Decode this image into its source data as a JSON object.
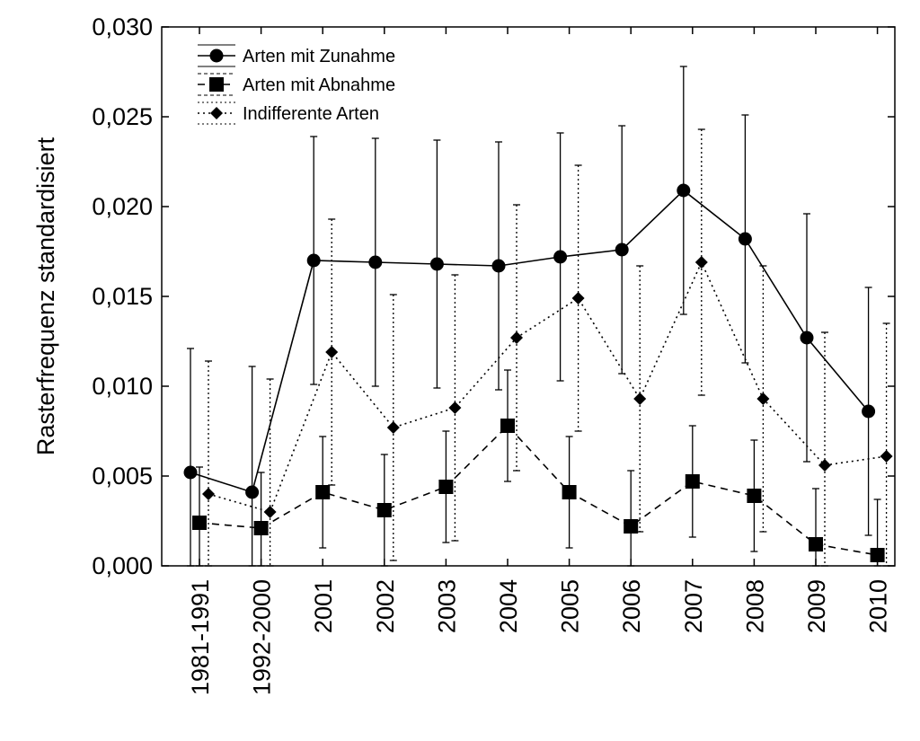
{
  "chart_data": {
    "type": "line",
    "title": "",
    "xlabel": "",
    "ylabel": "Rasterfrequenz standardisiert",
    "ylim": [
      0,
      0.03
    ],
    "yticks": [
      "0,000",
      "0,005",
      "0,010",
      "0,015",
      "0,020",
      "0,025",
      "0,030"
    ],
    "ytick_values": [
      0,
      0.005,
      0.01,
      0.015,
      0.02,
      0.025,
      0.03
    ],
    "categories": [
      "1981-1991",
      "1992-2000",
      "2001",
      "2002",
      "2003",
      "2004",
      "2005",
      "2006",
      "2007",
      "2008",
      "2009",
      "2010"
    ],
    "grid": false,
    "legend_position": "top-left",
    "error_bars": true,
    "series": [
      {
        "name": "Arten mit Zunahme",
        "marker": "circle",
        "line": "solid",
        "values": [
          0.0052,
          0.0041,
          0.017,
          0.0169,
          0.0168,
          0.0167,
          0.0172,
          0.0176,
          0.0209,
          0.0182,
          0.0127,
          0.0086
        ],
        "upper": [
          0.0121,
          0.0111,
          0.0239,
          0.0238,
          0.0237,
          0.0236,
          0.0241,
          0.0245,
          0.0278,
          0.0251,
          0.0196,
          0.0155
        ],
        "lower": [
          0.0,
          0.0,
          0.0101,
          0.01,
          0.0099,
          0.0098,
          0.0103,
          0.0107,
          0.014,
          0.0113,
          0.0058,
          0.0017
        ]
      },
      {
        "name": "Arten mit Abnahme",
        "marker": "square",
        "line": "dashed",
        "values": [
          0.0024,
          0.0021,
          0.0041,
          0.0031,
          0.0044,
          0.0078,
          0.0041,
          0.0022,
          0.0047,
          0.0039,
          0.0012,
          0.0006
        ],
        "upper": [
          0.0055,
          0.0052,
          0.0072,
          0.0062,
          0.0075,
          0.0109,
          0.0072,
          0.0053,
          0.0078,
          0.007,
          0.0043,
          0.0037
        ],
        "lower": [
          0.0,
          0.0,
          0.001,
          0.0,
          0.0013,
          0.0047,
          0.001,
          0.0,
          0.0016,
          0.0008,
          0.0,
          0.0
        ]
      },
      {
        "name": "Indifferente Arten",
        "marker": "diamond",
        "line": "dotted",
        "values": [
          0.004,
          0.003,
          0.0119,
          0.0077,
          0.0088,
          0.0127,
          0.0149,
          0.0093,
          0.0169,
          0.0093,
          0.0056,
          0.0061
        ],
        "upper": [
          0.0114,
          0.0104,
          0.0193,
          0.0151,
          0.0162,
          0.0201,
          0.0223,
          0.0167,
          0.0243,
          0.0167,
          0.013,
          0.0135
        ],
        "lower": [
          0.0,
          0.0,
          0.0045,
          0.0003,
          0.0014,
          0.0053,
          0.0075,
          0.0019,
          0.0095,
          0.0019,
          0.0,
          0.0
        ]
      }
    ]
  }
}
